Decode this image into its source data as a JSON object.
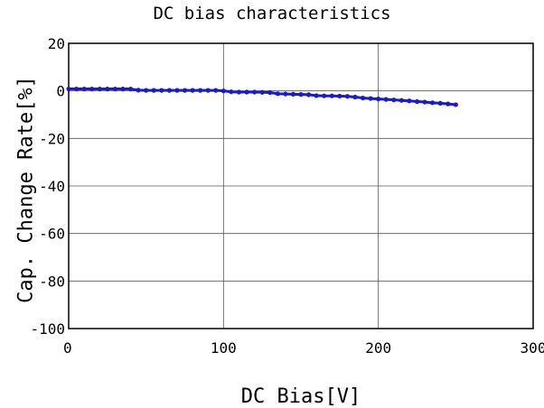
{
  "chart_data": {
    "type": "line",
    "title": "DC bias characteristics",
    "xlabel": "DC Bias[V]",
    "ylabel": "Cap. Change Rate[%]",
    "xlim": [
      0,
      300
    ],
    "ylim": [
      -100,
      20
    ],
    "xticks": [
      0,
      100,
      200,
      300
    ],
    "yticks": [
      20,
      0,
      -20,
      -40,
      -60,
      -80,
      -100
    ],
    "x_tick_labels": [
      "0",
      "100",
      "200",
      "300"
    ],
    "y_tick_labels": [
      "20",
      "0",
      "-20",
      "-40",
      "-60",
      "-80",
      "-100"
    ],
    "grid": true,
    "series": [
      {
        "color": "#1a1acc",
        "x": [
          0,
          5,
          10,
          15,
          20,
          25,
          30,
          35,
          40,
          45,
          50,
          55,
          60,
          65,
          70,
          75,
          80,
          85,
          90,
          95,
          100,
          105,
          110,
          115,
          120,
          125,
          130,
          135,
          140,
          145,
          150,
          155,
          160,
          165,
          170,
          175,
          180,
          185,
          190,
          195,
          200,
          205,
          210,
          215,
          220,
          225,
          230,
          235,
          240,
          245,
          250
        ],
        "y": [
          0.8,
          0.8,
          0.8,
          0.8,
          0.8,
          0.8,
          0.8,
          0.8,
          0.8,
          0.3,
          0.2,
          0.2,
          0.2,
          0.2,
          0.2,
          0.2,
          0.2,
          0.2,
          0.2,
          0.2,
          0.0,
          -0.4,
          -0.5,
          -0.5,
          -0.5,
          -0.6,
          -0.7,
          -1.2,
          -1.3,
          -1.4,
          -1.5,
          -1.6,
          -2.0,
          -2.1,
          -2.1,
          -2.2,
          -2.3,
          -2.6,
          -3.0,
          -3.2,
          -3.4,
          -3.6,
          -3.8,
          -4.0,
          -4.2,
          -4.5,
          -4.7,
          -5.0,
          -5.2,
          -5.5,
          -5.8
        ]
      }
    ]
  }
}
